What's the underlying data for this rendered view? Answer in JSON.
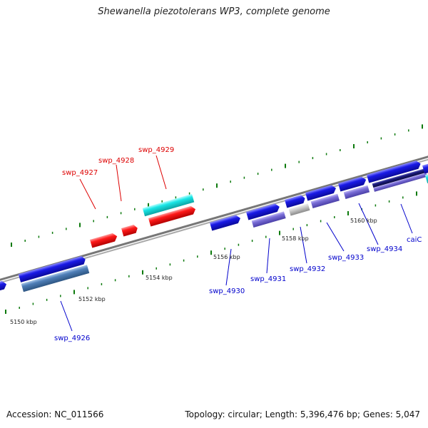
{
  "title": "Shewanella piezotolerans WP3, complete genome",
  "footer": {
    "accession": "Accession: NC_011566",
    "summary": "Topology: circular; Length: 5,396,476 bp; Genes: 5,047"
  },
  "colors": {
    "forward_cds": "#1a1ae6",
    "forward_highlight": "#ff1a1a",
    "reverse_cds": "#7b6fd8",
    "reverse_other": "#4f7fb8",
    "reverse_dark": "#1a1a7a",
    "reverse_grey": "#c8c8c8",
    "reverse_cyan": "#19e6e6",
    "backbone": "#888888",
    "tick": "#0d7a0d",
    "label_blue": "#0000cc",
    "label_red": "#dd0000"
  },
  "scale": {
    "tick_labels": [
      "5150 kbp",
      "5152 kbp",
      "5154 kbp",
      "5156 kbp",
      "5158 kbp",
      "5160 kbp"
    ]
  },
  "labels": {
    "forward": [
      "swp_4927",
      "swp_4928",
      "swp_4929"
    ],
    "reverse": [
      "swp_4926",
      "swp_4930",
      "swp_4931",
      "swp_4932",
      "swp_4933",
      "swp_4934",
      "caiC"
    ]
  }
}
